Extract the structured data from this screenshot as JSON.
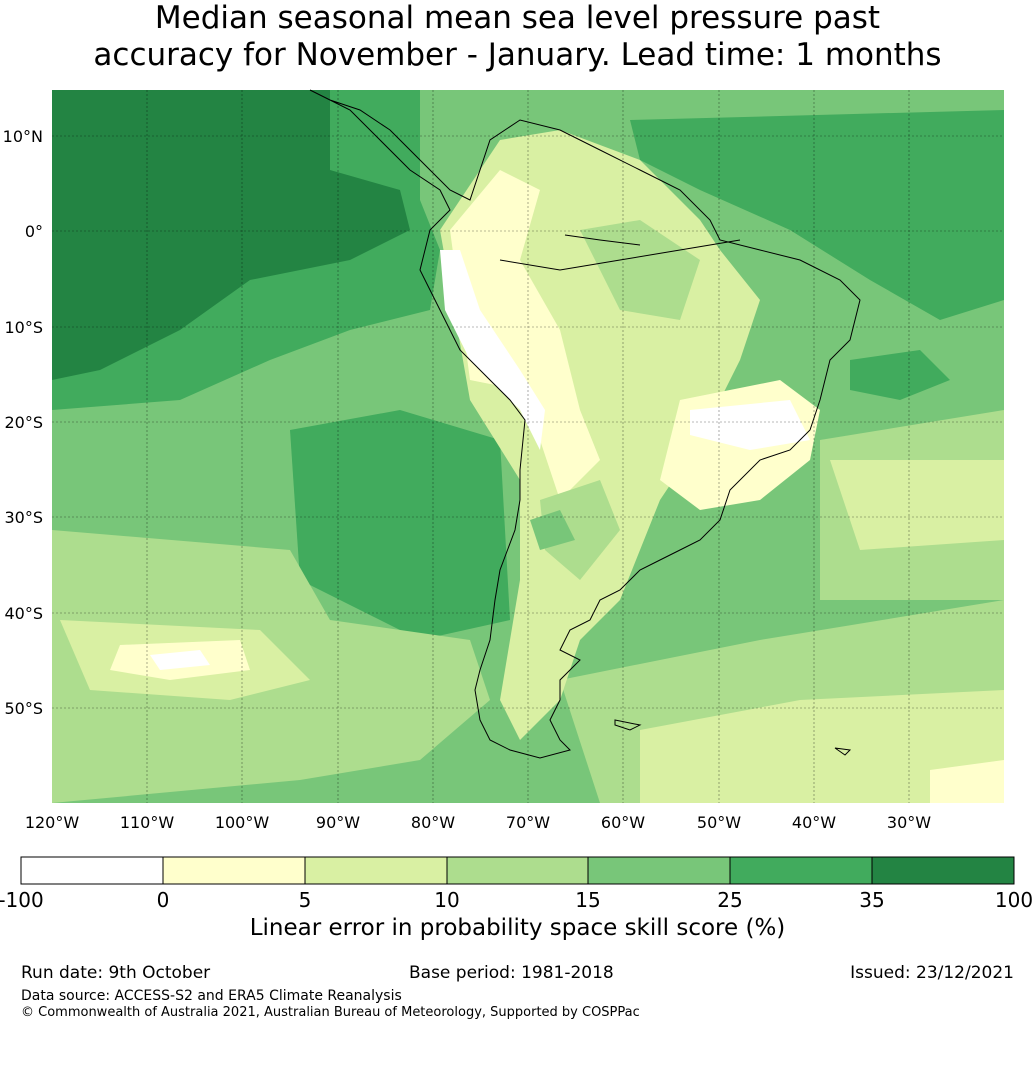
{
  "title": {
    "line1": "Median seasonal mean sea level pressure past",
    "line2": "accuracy for November - January. Lead time: 1 months"
  },
  "map": {
    "lon_labels": [
      "120°W",
      "110°W",
      "100°W",
      "90°W",
      "80°W",
      "70°W",
      "60°W",
      "50°W",
      "40°W",
      "30°W"
    ],
    "lat_labels": [
      "10°N",
      "0°",
      "10°S",
      "20°S",
      "30°S",
      "40°S",
      "50°S"
    ],
    "colors": {
      "neg": "#ffffff",
      "c0_5": "#ffffcc",
      "c5_10": "#d9f0a3",
      "c10_15": "#addd8e",
      "c15_25": "#78c679",
      "c25_35": "#41ab5d",
      "c35_100": "#238443"
    }
  },
  "colorbar": {
    "ticks": [
      "-100",
      "0",
      "5",
      "10",
      "15",
      "25",
      "35",
      "100"
    ],
    "label": "Linear error in probability space skill score (%)"
  },
  "footer": {
    "run_date": "Run date: 9th October",
    "base_period": "Base period: 1981-2018",
    "issued": "Issued: 23/12/2021",
    "data_source": "Data source: ACCESS-S2 and ERA5 Climate Reanalysis",
    "copyright": "© Commonwealth of Australia 2021, Australian Bureau of Meteorology, Supported by COSPPac"
  }
}
